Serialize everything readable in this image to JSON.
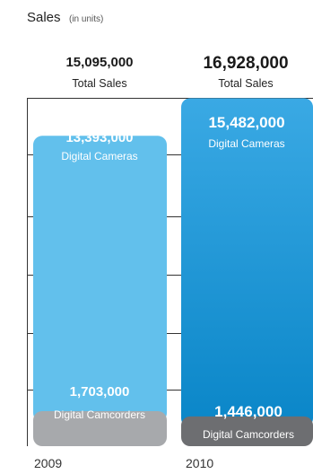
{
  "chart_data": {
    "type": "bar",
    "stacked": true,
    "title": "Sales",
    "subtitle": "(in units)",
    "categories": [
      "2009",
      "2010"
    ],
    "totals": [
      {
        "value_label": "15,095,000",
        "label": "Total Sales",
        "value": 15095000
      },
      {
        "value_label": "16,928,000",
        "label": "Total Sales",
        "value": 16928000
      }
    ],
    "series": [
      {
        "name": "Digital Cameras",
        "values": [
          13393000,
          15482000
        ],
        "value_labels": [
          "13,393,000",
          "15,482,000"
        ]
      },
      {
        "name": "Digital Camcorders",
        "values": [
          1703000,
          1446000
        ],
        "value_labels": [
          "1,703,000",
          "1,446,000"
        ]
      }
    ],
    "colors": {
      "cameras_2009": "#62c0ec",
      "camcorders_2009": "#a7a9ac",
      "cameras_2010_top": "#3aa9e4",
      "cameras_2010_bottom": "#0a86c8",
      "camcorders_2010": "#6d6e71",
      "axis": "#333333"
    },
    "grid": true
  }
}
